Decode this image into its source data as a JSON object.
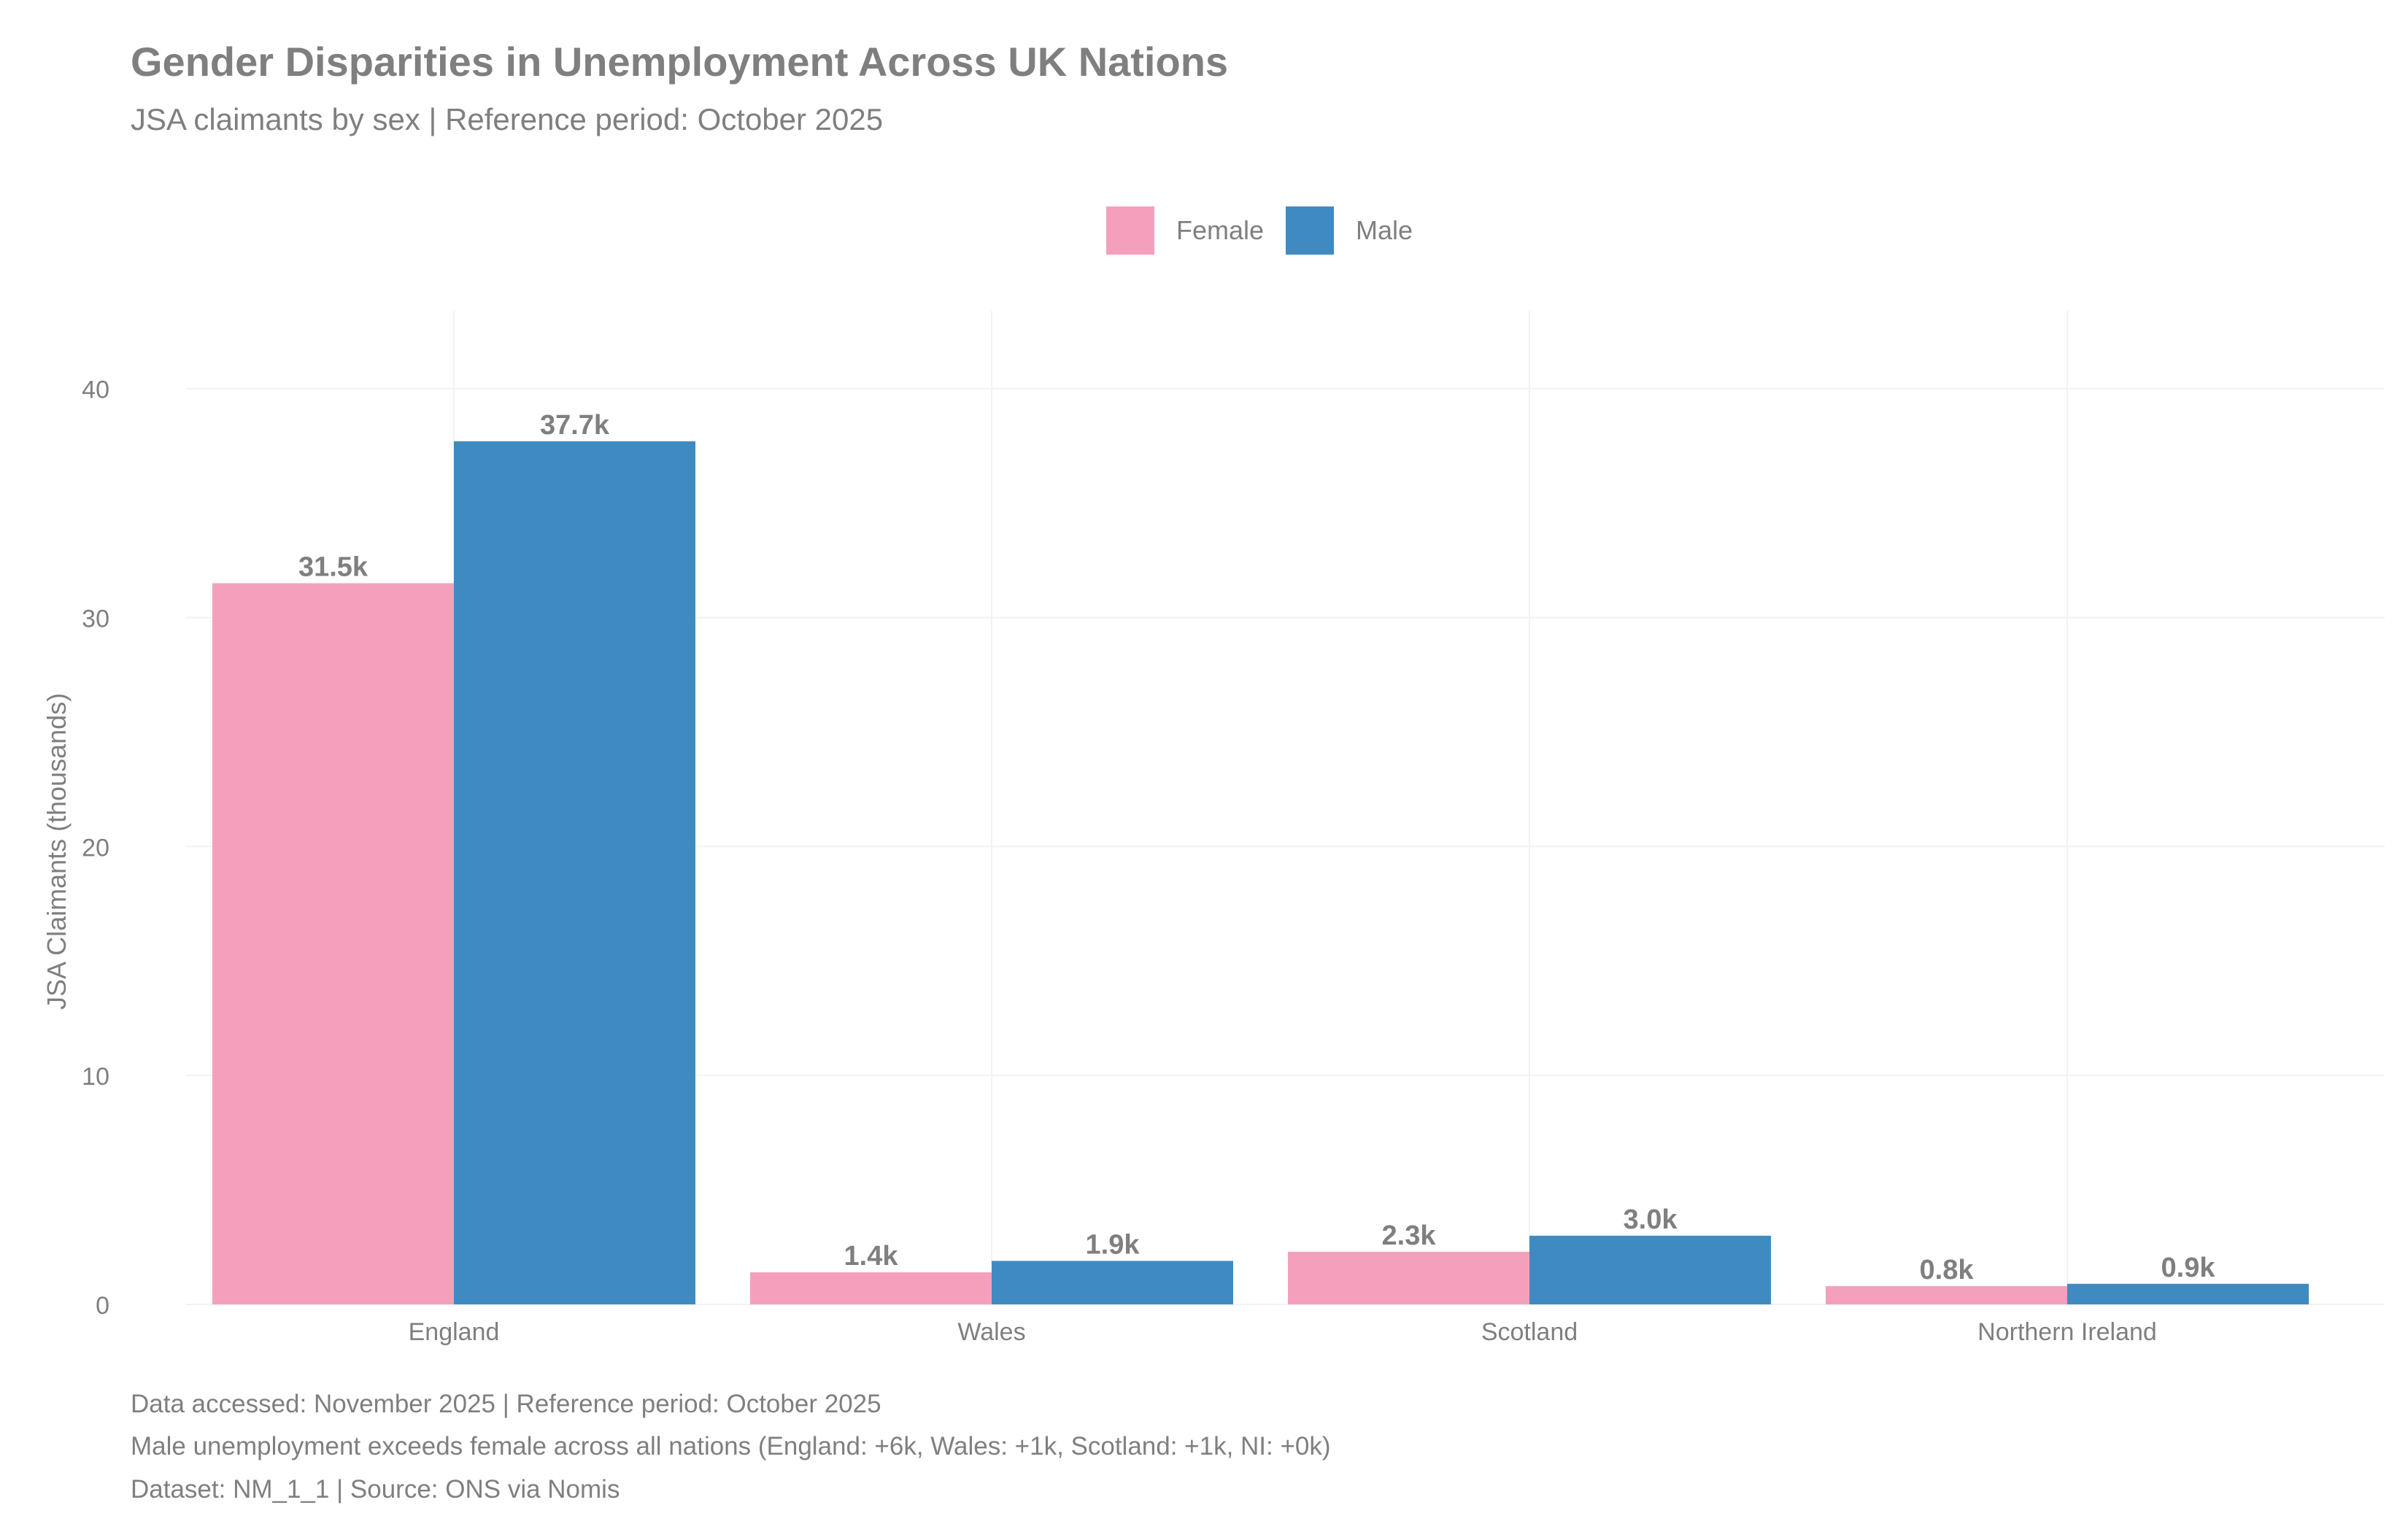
{
  "chart_data": {
    "type": "bar",
    "title": "Gender Disparities in Unemployment Across UK Nations",
    "subtitle": "JSA claimants by sex | Reference period: October 2025",
    "xlabel": "",
    "ylabel": "JSA Claimants (thousands)",
    "ylim": [
      0,
      43.4
    ],
    "yticks": [
      0,
      10,
      20,
      30,
      40
    ],
    "grid": true,
    "legend_position": "top",
    "categories": [
      "England",
      "Wales",
      "Scotland",
      "Northern Ireland"
    ],
    "series": [
      {
        "name": "Female",
        "color": "#F4A0BC",
        "values": [
          31.5,
          1.4,
          2.3,
          0.8
        ],
        "labels": [
          "31.5k",
          "1.4k",
          "2.3k",
          "0.8k"
        ]
      },
      {
        "name": "Male",
        "color": "#3F8BC1",
        "values": [
          37.7,
          1.9,
          3.0,
          0.9
        ],
        "labels": [
          "37.7k",
          "1.9k",
          "3.0k",
          "0.9k"
        ]
      }
    ],
    "captions": [
      "Data accessed: November 2025 | Reference period: October 2025",
      "Male unemployment exceeds female across all nations (England: +6k, Wales: +1k, Scotland: +1k, NI: +0k)",
      "Dataset: NM_1_1 | Source: ONS via Nomis"
    ]
  }
}
